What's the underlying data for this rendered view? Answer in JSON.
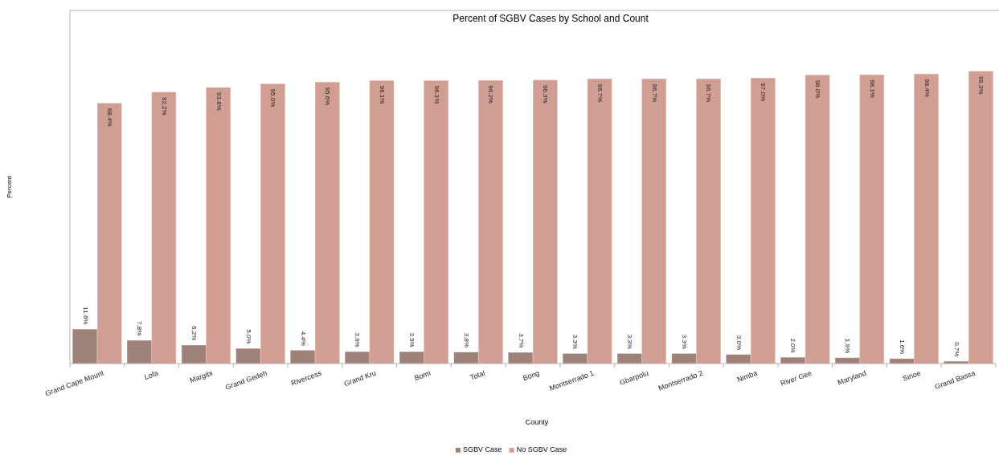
{
  "chart_data": {
    "type": "bar",
    "title": "Percent of SGBV Cases by School and Count",
    "xlabel": "County",
    "ylabel": "Percent",
    "categories": [
      "Grand Cape Mount",
      "Lofa",
      "Margibi",
      "Grand Gedeh",
      "Rivercess",
      "Grand Kru",
      "Bomi",
      "Total",
      "Bong",
      "Montserrado 1",
      "Gbarpolu",
      "Montserrado 2",
      "Nimba",
      "River Gee",
      "Maryland",
      "Sinoe",
      "Grand Bassa"
    ],
    "series": [
      {
        "name": "SGBV Case",
        "color": "#9e8178",
        "values": [
          11.6,
          7.8,
          6.2,
          5.0,
          4.4,
          3.9,
          3.9,
          3.8,
          3.7,
          3.3,
          3.3,
          3.3,
          3.0,
          2.0,
          1.9,
          1.6,
          0.7
        ],
        "value_labels": [
          "11.6%",
          "7.8%",
          "6.2%",
          "5.0%",
          "4.4%",
          "3.9%",
          "3.9%",
          "3.8%",
          "3.7%",
          "3.3%",
          "3.3%",
          "3.3%",
          "3.0%",
          "2.0%",
          "1.9%",
          "1.6%",
          "0.7%"
        ]
      },
      {
        "name": "No SGBV Case",
        "color": "#d09e92",
        "values": [
          88.4,
          92.2,
          93.8,
          95.0,
          95.6,
          96.1,
          96.1,
          96.2,
          96.3,
          96.7,
          96.7,
          96.7,
          97.0,
          98.0,
          98.1,
          98.4,
          99.3
        ],
        "value_labels": [
          "88.4%",
          "92.2%",
          "93.8%",
          "95.0%",
          "95.6%",
          "96.1%",
          "96.1%",
          "96.2%",
          "96.3%",
          "96.7%",
          "96.7%",
          "96.7%",
          "97.0%",
          "98.0%",
          "98.1%",
          "98.4%",
          "99.3%"
        ]
      }
    ],
    "ylim": [
      0,
      120
    ],
    "legend": "bottom",
    "grid": false,
    "tick_labels": "x"
  }
}
